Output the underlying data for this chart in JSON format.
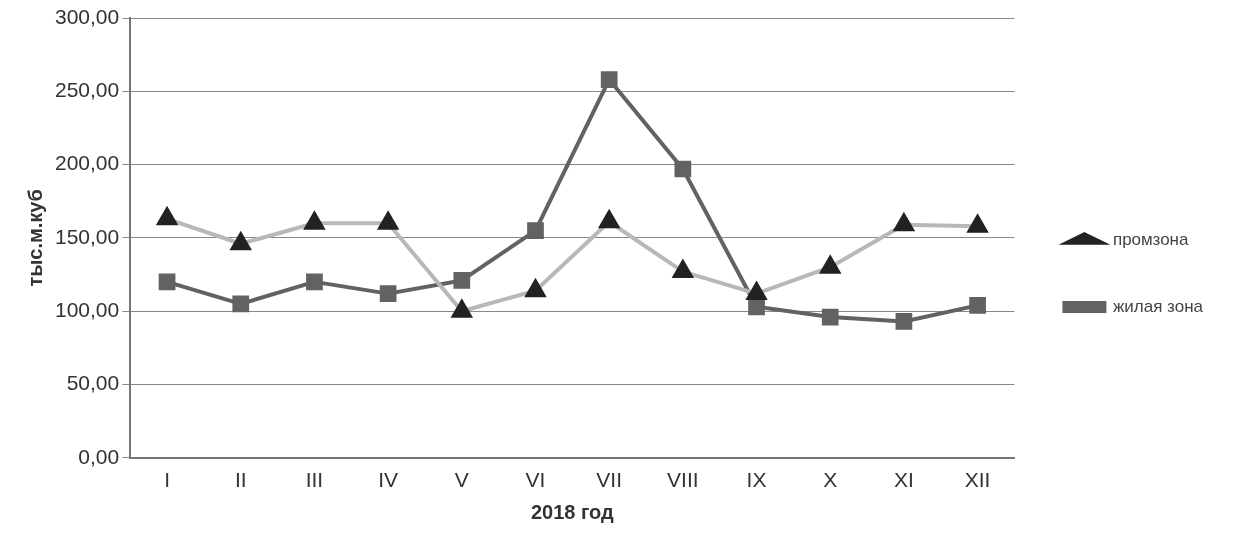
{
  "chart_data": {
    "type": "line",
    "xlabel": "2018 год",
    "ylabel": "тыс.м.куб",
    "categories": [
      "I",
      "II",
      "III",
      "IV",
      "V",
      "VI",
      "VII",
      "VIII",
      "IX",
      "X",
      "XI",
      "XII"
    ],
    "series": [
      {
        "name": "промзона",
        "color": "#b8b8b8",
        "marker": "triangle",
        "values": [
          163,
          146,
          160,
          160,
          100,
          114,
          161,
          127,
          112,
          130,
          159,
          158
        ]
      },
      {
        "name": "жилая зона",
        "color": "#626262",
        "marker": "square",
        "values": [
          120,
          105,
          120,
          112,
          121,
          155,
          258,
          197,
          103,
          96,
          93,
          104
        ]
      }
    ],
    "ylim": [
      0,
      300
    ],
    "yticks": [
      {
        "value": 0,
        "label": "0,00"
      },
      {
        "value": 50,
        "label": "50,00"
      },
      {
        "value": 100,
        "label": "100,00"
      },
      {
        "value": 150,
        "label": "150,00"
      },
      {
        "value": 200,
        "label": "200,00"
      },
      {
        "value": 250,
        "label": "250,00"
      },
      {
        "value": 300,
        "label": "300,00"
      }
    ],
    "grid": "y",
    "legend": "right"
  }
}
